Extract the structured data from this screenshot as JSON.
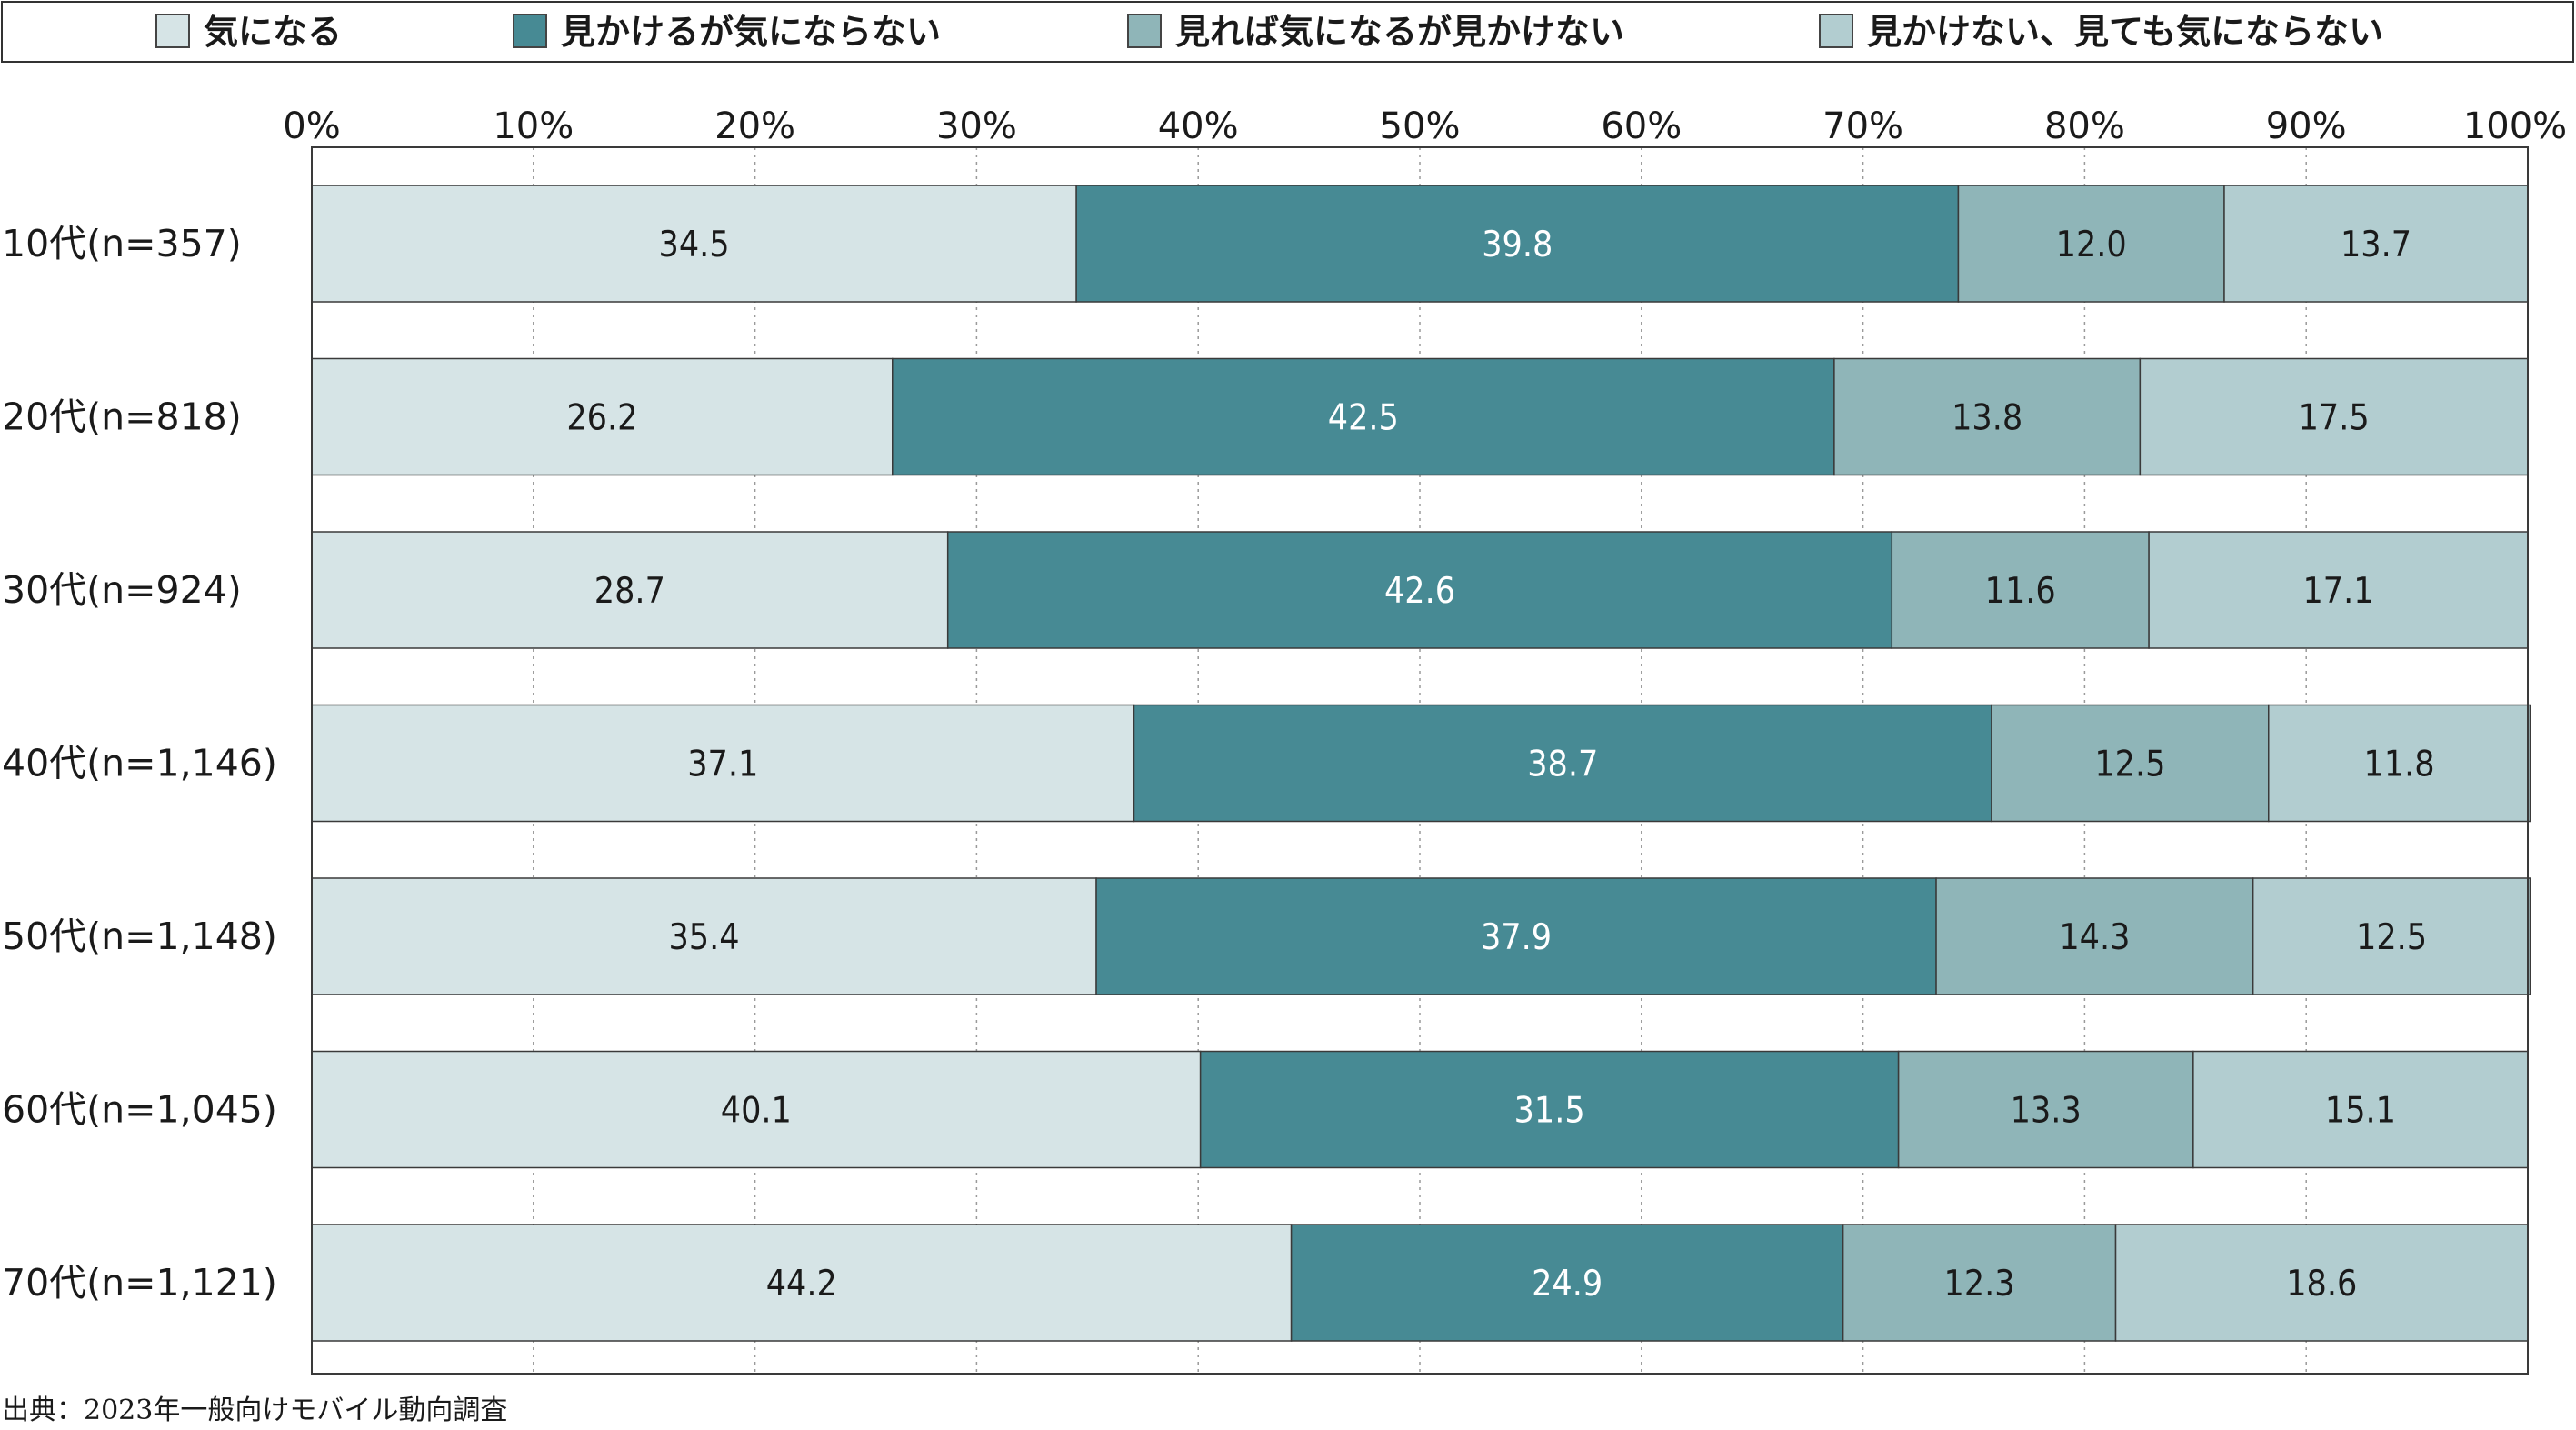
{
  "chart_data": {
    "type": "bar",
    "orientation": "horizontal",
    "stacked": true,
    "percent_stacked": true,
    "categories": [
      "10代(n=357)",
      "20代(n=818)",
      "30代(n=924)",
      "40代(n=1,146)",
      "50代(n=1,148)",
      "60代(n=1,045)",
      "70代(n=1,121)"
    ],
    "series": [
      {
        "name": "気になる",
        "color": "#d6e4e6",
        "label_color": "#1a1a1a",
        "values": [
          34.5,
          26.2,
          28.7,
          37.1,
          35.4,
          40.1,
          44.2
        ]
      },
      {
        "name": "見かけるが気にならない",
        "color": "#478a94",
        "label_color": "#ffffff",
        "values": [
          39.8,
          42.5,
          42.6,
          38.7,
          37.9,
          31.5,
          24.9
        ]
      },
      {
        "name": "見れば気になるが見かけない",
        "color": "#8fb5b8",
        "label_color": "#1a1a1a",
        "values": [
          12.0,
          13.8,
          11.6,
          12.5,
          14.3,
          13.3,
          12.3
        ]
      },
      {
        "name": "見かけない、見ても気にならない",
        "color": "#b2cdd0",
        "label_color": "#1a1a1a",
        "values": [
          13.7,
          17.5,
          17.1,
          11.8,
          12.5,
          15.1,
          18.6
        ]
      }
    ],
    "x_ticks": [
      "0%",
      "10%",
      "20%",
      "30%",
      "40%",
      "50%",
      "60%",
      "70%",
      "80%",
      "90%",
      "100%"
    ],
    "xlim": [
      0,
      100
    ],
    "grid": "vertical dotted",
    "legend_position": "top",
    "source": "出典：2023年一般向けモバイル動向調査"
  }
}
